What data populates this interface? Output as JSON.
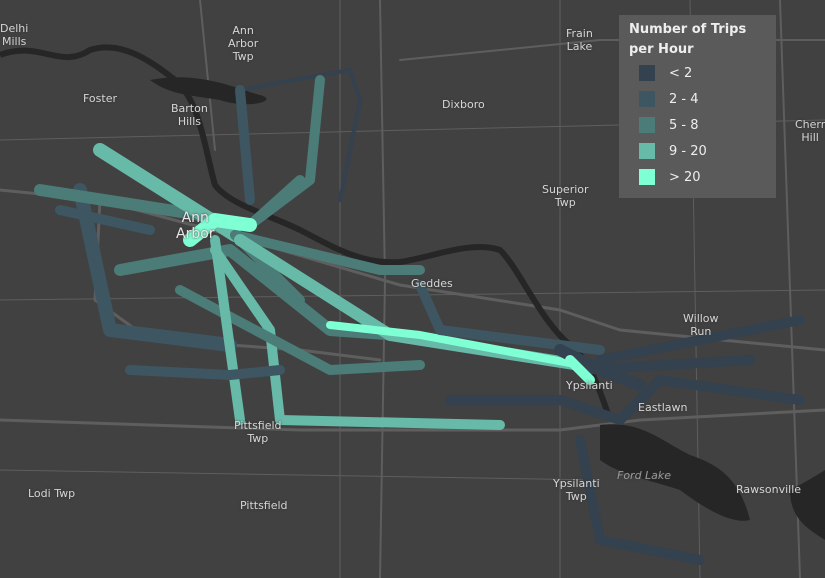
{
  "legend": {
    "title": "Number of Trips per Hour",
    "classes": [
      {
        "label": "< 2",
        "color": "#34414f"
      },
      {
        "label": "2 - 4",
        "color": "#3d5661"
      },
      {
        "label": "5 - 8",
        "color": "#4b7c77"
      },
      {
        "label": "9 - 20",
        "color": "#67b9a8"
      },
      {
        "label": "> 20",
        "color": "#7fffd4"
      }
    ]
  },
  "places": {
    "delhi_mills": "Delhi\nMills",
    "ann_arbor_twp": "Ann\nArbor\nTwp",
    "frain_lake": "Frain\nLake",
    "foster": "Foster",
    "barton_hills": "Barton\nHills",
    "dixboro": "Dixboro",
    "cherry_hill": "Cherr\nHill",
    "superior_twp": "Superior\nTwp",
    "ann_arbor": "Ann\nArbor",
    "geddes": "Geddes",
    "willow_run": "Willow\nRun",
    "ypsilanti": "Ypsilanti",
    "eastlawn": "Eastlawn",
    "pittsfield_twp": "Pittsfield\nTwp",
    "lodi_twp": "Lodi Twp",
    "pittsfield": "Pittsfield",
    "ypsilanti_twp": "Ypsilanti\nTwp",
    "ford_lake": "Ford Lake",
    "rawsonville": "Rawsonville"
  },
  "colors": {
    "background": "#414141",
    "roads": "#555555",
    "highway": "#5e5e5e",
    "water": "#262626"
  }
}
